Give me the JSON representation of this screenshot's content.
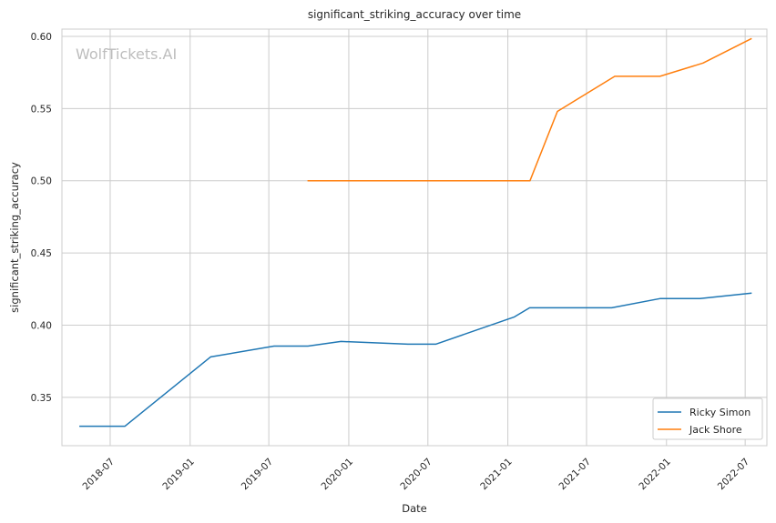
{
  "watermark": "WolfTickets.AI",
  "chart_data": {
    "type": "line",
    "title": "significant_striking_accuracy over time",
    "xlabel": "Date",
    "ylabel": "significant_striking_accuracy",
    "x_ticks": [
      "2018-07",
      "2019-01",
      "2019-07",
      "2020-01",
      "2020-07",
      "2021-01",
      "2021-07",
      "2022-01",
      "2022-07"
    ],
    "y_ticks": [
      "0.35",
      "0.40",
      "0.45",
      "0.50",
      "0.55",
      "0.60"
    ],
    "xlim": [
      "2018-03-12",
      "2022-08-20"
    ],
    "ylim": [
      0.3165,
      0.605
    ],
    "grid": true,
    "legend_position": "lower right",
    "series": [
      {
        "name": "Ricky Simon",
        "color": "#1f77b4",
        "points": [
          {
            "x": "2018-04-21",
            "y": 0.33
          },
          {
            "x": "2018-08-04",
            "y": 0.33
          },
          {
            "x": "2019-02-17",
            "y": 0.378
          },
          {
            "x": "2019-07-13",
            "y": 0.3855
          },
          {
            "x": "2019-09-29",
            "y": 0.3855
          },
          {
            "x": "2019-12-14",
            "y": 0.3887
          },
          {
            "x": "2020-05-16",
            "y": 0.3868
          },
          {
            "x": "2020-07-19",
            "y": 0.3868
          },
          {
            "x": "2021-01-16",
            "y": 0.4057
          },
          {
            "x": "2021-02-20",
            "y": 0.412
          },
          {
            "x": "2021-08-28",
            "y": 0.412
          },
          {
            "x": "2021-12-18",
            "y": 0.4184
          },
          {
            "x": "2022-03-19",
            "y": 0.4184
          },
          {
            "x": "2022-07-16",
            "y": 0.4222
          }
        ]
      },
      {
        "name": "Jack Shore",
        "color": "#ff7f0e",
        "points": [
          {
            "x": "2019-09-28",
            "y": 0.5
          },
          {
            "x": "2021-02-21",
            "y": 0.5
          },
          {
            "x": "2021-04-25",
            "y": 0.548
          },
          {
            "x": "2021-09-04",
            "y": 0.5723
          },
          {
            "x": "2021-12-17",
            "y": 0.5723
          },
          {
            "x": "2022-03-26",
            "y": 0.5815
          },
          {
            "x": "2022-07-16",
            "y": 0.5985
          }
        ]
      }
    ]
  }
}
